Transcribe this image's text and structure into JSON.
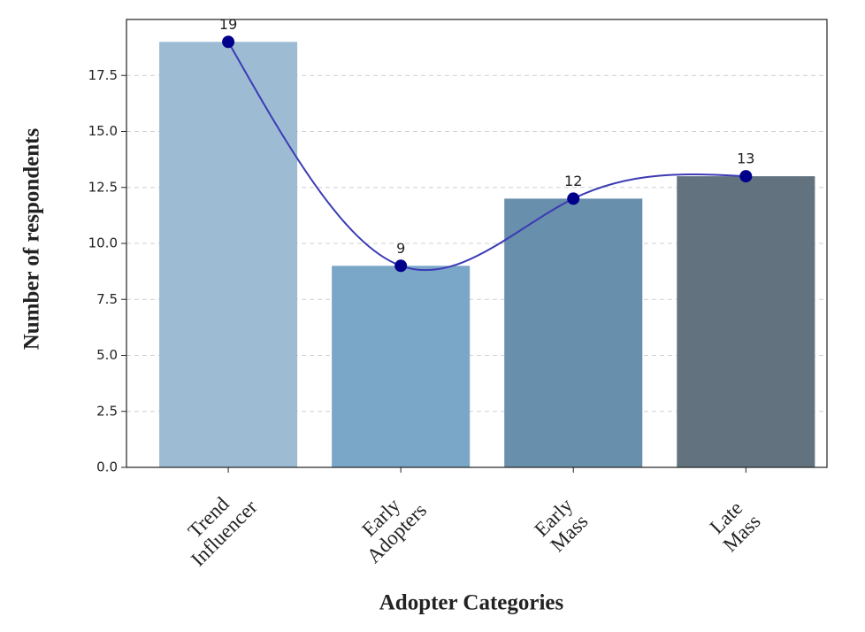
{
  "chart_data": {
    "type": "bar",
    "x_label": "Adopter Categories",
    "y_label": "Number of respondents",
    "categories": [
      [
        "Trend",
        "Influencer"
      ],
      [
        "Early",
        "Adopters"
      ],
      [
        "Early",
        "Mass"
      ],
      [
        "Late",
        "Mass"
      ]
    ],
    "values": [
      19,
      9,
      12,
      13
    ],
    "colors": [
      "#9dbcd4",
      "#7aa6c8",
      "#688fac",
      "#62737f"
    ],
    "line_color": "#3b3bb5",
    "marker_color": "#00008b",
    "ylim": [
      0,
      20
    ],
    "yticks": [
      {
        "value": 0,
        "label": "0.0"
      },
      2.5,
      {
        "value": 5,
        "label": "5.0"
      },
      7.5,
      {
        "value": 10,
        "label": "10.0"
      },
      12.5,
      {
        "value": 15,
        "label": "15.0"
      },
      17.5
    ],
    "grid": true
  }
}
